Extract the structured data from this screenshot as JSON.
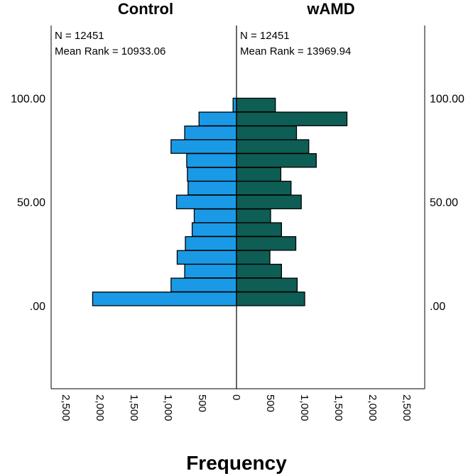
{
  "chart_data": {
    "type": "bar",
    "orientation": "population-pyramid",
    "xlabel": "Frequency",
    "xlim": [
      0,
      2500
    ],
    "xticks_left": [
      "2,500",
      "2,000",
      "1,500",
      "1,000",
      "500",
      "0"
    ],
    "xticks_right": [
      "500",
      "1,000",
      "1,500",
      "2,000",
      "2,500"
    ],
    "ylim": [
      -40,
      135
    ],
    "yticks": [
      ".00",
      "50.00",
      "100.00"
    ],
    "ytick_values": [
      0,
      50,
      100
    ],
    "bin_centers": [
      3.3,
      10,
      16.7,
      23.3,
      30,
      36.7,
      43.3,
      50,
      56.7,
      63.3,
      70,
      76.7,
      83.3,
      90,
      96.7,
      103.3
    ],
    "series": [
      {
        "name": "Control",
        "color": "#1a9ae6",
        "n_label": "N = 12451",
        "rank_label": "Mean Rank = 10933.06",
        "values": [
          2110,
          960,
          760,
          870,
          750,
          650,
          620,
          880,
          710,
          720,
          730,
          960,
          760,
          550,
          50,
          0
        ]
      },
      {
        "name": "wAMD",
        "color": "#0e5e55",
        "n_label": "N = 12451",
        "rank_label": "Mean Rank = 13969.94",
        "values": [
          1000,
          890,
          660,
          490,
          870,
          660,
          500,
          950,
          800,
          650,
          1170,
          1060,
          880,
          1620,
          570,
          0
        ]
      }
    ]
  }
}
